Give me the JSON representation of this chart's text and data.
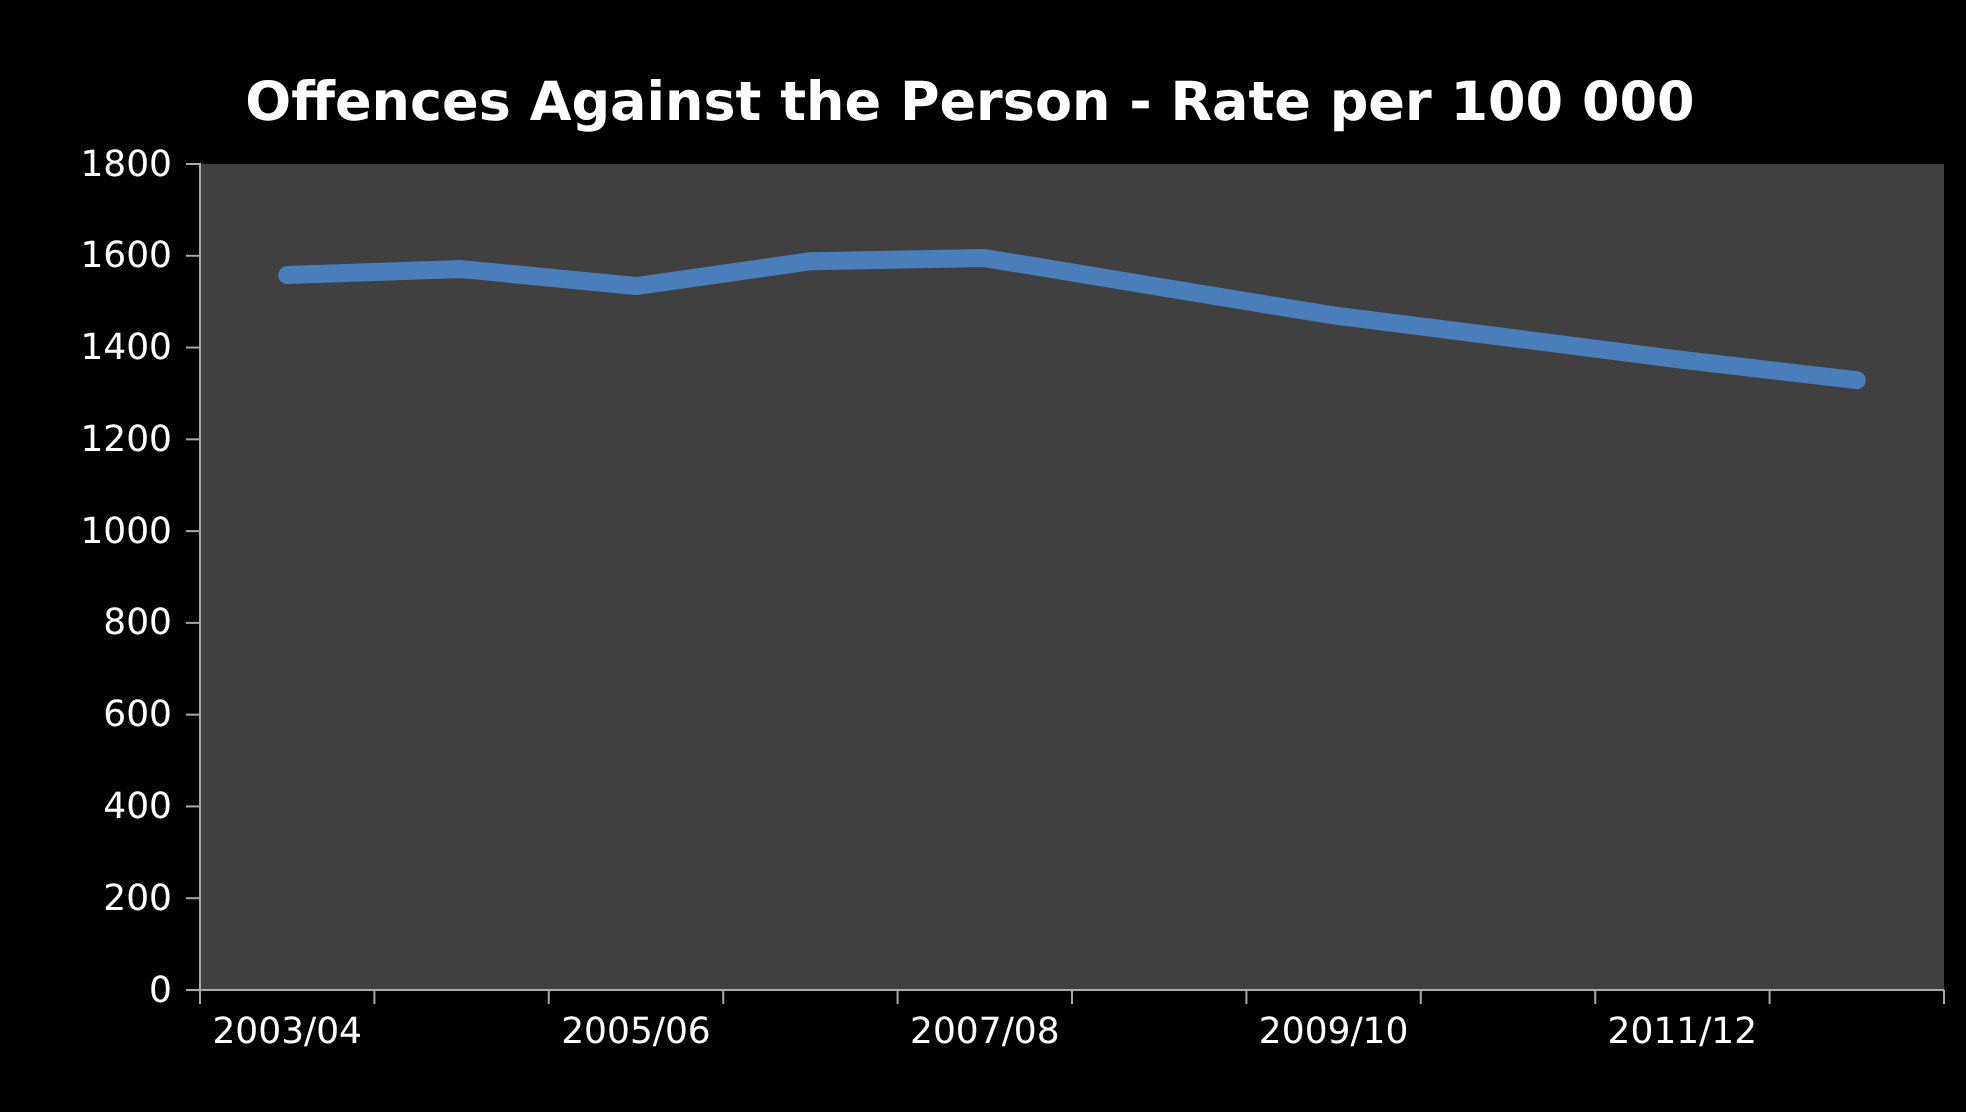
{
  "chart_data": {
    "type": "line",
    "title": "Offences Against the Person - Rate per 100 000",
    "categories": [
      "2003/04",
      null,
      "2005/06",
      null,
      "2007/08",
      null,
      "2009/10",
      null,
      "2011/12",
      null
    ],
    "series": [
      {
        "color": "#4a7ebb",
        "values": [
          1558,
          1571,
          1534,
          1588,
          1595,
          1532,
          1470,
          1422,
          1373,
          1329
        ]
      }
    ],
    "ylim": [
      0,
      1800
    ],
    "yticks": [
      0,
      200,
      400,
      600,
      800,
      1000,
      1200,
      1400,
      1600,
      1800
    ],
    "grid": false,
    "marker": "none",
    "line_style": "solid"
  }
}
